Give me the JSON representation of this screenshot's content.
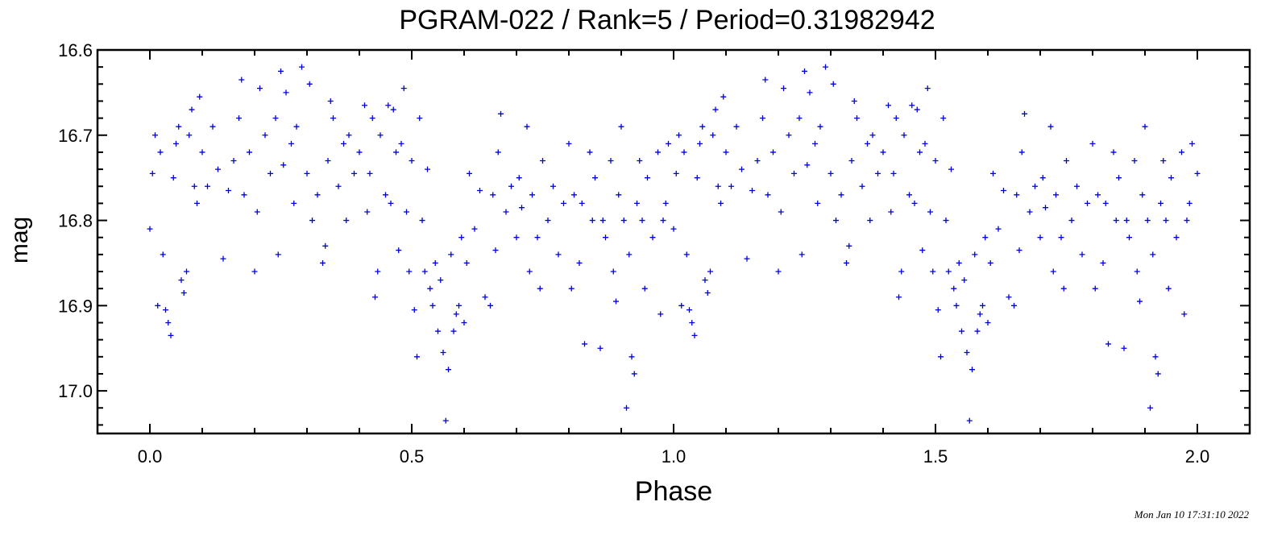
{
  "chart_data": {
    "type": "scatter",
    "title": "PGRAM-022 / Rank=5 / Period=0.31982942",
    "xlabel": "Phase",
    "ylabel": "mag",
    "xlim": [
      -0.1,
      2.1
    ],
    "ylim": [
      17.05,
      16.6
    ],
    "y_inverted": true,
    "xticks": [
      0.0,
      0.5,
      1.0,
      1.5,
      2.0
    ],
    "xtick_labels": [
      "0.0",
      "0.5",
      "1.0",
      "1.5",
      "2.0"
    ],
    "yticks": [
      16.6,
      16.7,
      16.8,
      16.9,
      17.0
    ],
    "ytick_labels": [
      "16.6",
      "16.7",
      "16.8",
      "16.9",
      "17.0"
    ],
    "marker": "+",
    "marker_color": "#0000dd",
    "grid": false,
    "timestamp": "Mon Jan 10 17:31:10 2022",
    "series": [
      {
        "points": [
          [
            0.0,
            16.81
          ],
          [
            0.005,
            16.745
          ],
          [
            0.01,
            16.7
          ],
          [
            0.015,
            16.9
          ],
          [
            0.02,
            16.72
          ],
          [
            0.025,
            16.84
          ],
          [
            0.03,
            16.905
          ],
          [
            0.035,
            16.92
          ],
          [
            0.04,
            16.935
          ],
          [
            0.045,
            16.75
          ],
          [
            0.05,
            16.71
          ],
          [
            0.055,
            16.69
          ],
          [
            0.06,
            16.87
          ],
          [
            0.065,
            16.885
          ],
          [
            0.07,
            16.86
          ],
          [
            0.075,
            16.7
          ],
          [
            0.08,
            16.67
          ],
          [
            0.085,
            16.76
          ],
          [
            0.09,
            16.78
          ],
          [
            0.095,
            16.655
          ],
          [
            0.1,
            16.72
          ],
          [
            0.11,
            16.76
          ],
          [
            0.12,
            16.69
          ],
          [
            0.13,
            16.74
          ],
          [
            0.14,
            16.845
          ],
          [
            0.15,
            16.765
          ],
          [
            0.16,
            16.73
          ],
          [
            0.17,
            16.68
          ],
          [
            0.175,
            16.635
          ],
          [
            0.18,
            16.77
          ],
          [
            0.19,
            16.72
          ],
          [
            0.2,
            16.86
          ],
          [
            0.205,
            16.79
          ],
          [
            0.21,
            16.645
          ],
          [
            0.22,
            16.7
          ],
          [
            0.23,
            16.745
          ],
          [
            0.24,
            16.68
          ],
          [
            0.245,
            16.84
          ],
          [
            0.25,
            16.625
          ],
          [
            0.255,
            16.735
          ],
          [
            0.26,
            16.65
          ],
          [
            0.27,
            16.71
          ],
          [
            0.275,
            16.78
          ],
          [
            0.28,
            16.69
          ],
          [
            0.29,
            16.62
          ],
          [
            0.3,
            16.745
          ],
          [
            0.305,
            16.64
          ],
          [
            0.31,
            16.8
          ],
          [
            0.32,
            16.77
          ],
          [
            0.33,
            16.85
          ],
          [
            0.335,
            16.83
          ],
          [
            0.34,
            16.73
          ],
          [
            0.345,
            16.66
          ],
          [
            0.35,
            16.68
          ],
          [
            0.36,
            16.76
          ],
          [
            0.37,
            16.71
          ],
          [
            0.375,
            16.8
          ],
          [
            0.38,
            16.7
          ],
          [
            0.39,
            16.745
          ],
          [
            0.4,
            16.72
          ],
          [
            0.41,
            16.665
          ],
          [
            0.415,
            16.79
          ],
          [
            0.42,
            16.745
          ],
          [
            0.425,
            16.68
          ],
          [
            0.43,
            16.89
          ],
          [
            0.435,
            16.86
          ],
          [
            0.44,
            16.7
          ],
          [
            0.45,
            16.77
          ],
          [
            0.455,
            16.665
          ],
          [
            0.46,
            16.78
          ],
          [
            0.465,
            16.67
          ],
          [
            0.47,
            16.72
          ],
          [
            0.475,
            16.835
          ],
          [
            0.48,
            16.71
          ],
          [
            0.485,
            16.645
          ],
          [
            0.49,
            16.79
          ],
          [
            0.495,
            16.86
          ],
          [
            0.5,
            16.73
          ],
          [
            0.505,
            16.905
          ],
          [
            0.51,
            16.96
          ],
          [
            0.515,
            16.68
          ],
          [
            0.52,
            16.8
          ],
          [
            0.525,
            16.86
          ],
          [
            0.53,
            16.74
          ],
          [
            0.535,
            16.88
          ],
          [
            0.54,
            16.9
          ],
          [
            0.545,
            16.85
          ],
          [
            0.55,
            16.93
          ],
          [
            0.555,
            16.87
          ],
          [
            0.56,
            16.955
          ],
          [
            0.565,
            17.035
          ],
          [
            0.57,
            16.975
          ],
          [
            0.575,
            16.84
          ],
          [
            0.58,
            16.93
          ],
          [
            0.585,
            16.91
          ],
          [
            0.59,
            16.9
          ],
          [
            0.595,
            16.82
          ],
          [
            0.6,
            16.92
          ],
          [
            0.605,
            16.85
          ],
          [
            0.61,
            16.745
          ],
          [
            0.62,
            16.81
          ],
          [
            0.63,
            16.765
          ],
          [
            0.64,
            16.89
          ],
          [
            0.65,
            16.9
          ],
          [
            0.655,
            16.77
          ],
          [
            0.66,
            16.835
          ],
          [
            0.665,
            16.72
          ],
          [
            0.67,
            16.675
          ],
          [
            0.68,
            16.79
          ],
          [
            0.69,
            16.76
          ],
          [
            0.7,
            16.82
          ],
          [
            0.705,
            16.75
          ],
          [
            0.71,
            16.785
          ],
          [
            0.72,
            16.69
          ],
          [
            0.725,
            16.86
          ],
          [
            0.73,
            16.77
          ],
          [
            0.74,
            16.82
          ],
          [
            0.745,
            16.88
          ],
          [
            0.75,
            16.73
          ],
          [
            0.76,
            16.8
          ],
          [
            0.77,
            16.76
          ],
          [
            0.78,
            16.84
          ],
          [
            0.79,
            16.78
          ],
          [
            0.8,
            16.71
          ],
          [
            0.805,
            16.88
          ],
          [
            0.81,
            16.77
          ],
          [
            0.82,
            16.85
          ],
          [
            0.825,
            16.78
          ],
          [
            0.83,
            16.945
          ],
          [
            0.84,
            16.72
          ],
          [
            0.845,
            16.8
          ],
          [
            0.85,
            16.75
          ],
          [
            0.86,
            16.95
          ],
          [
            0.865,
            16.8
          ],
          [
            0.87,
            16.82
          ],
          [
            0.88,
            16.73
          ],
          [
            0.885,
            16.86
          ],
          [
            0.89,
            16.895
          ],
          [
            0.895,
            16.77
          ],
          [
            0.9,
            16.69
          ],
          [
            0.905,
            16.8
          ],
          [
            0.91,
            17.02
          ],
          [
            0.915,
            16.84
          ],
          [
            0.92,
            16.96
          ],
          [
            0.925,
            16.98
          ],
          [
            0.93,
            16.78
          ],
          [
            0.935,
            16.73
          ],
          [
            0.94,
            16.8
          ],
          [
            0.945,
            16.88
          ],
          [
            0.95,
            16.75
          ],
          [
            0.96,
            16.82
          ],
          [
            0.97,
            16.72
          ],
          [
            0.975,
            16.91
          ],
          [
            0.98,
            16.8
          ],
          [
            0.985,
            16.78
          ],
          [
            0.99,
            16.71
          ],
          [
            1.0,
            16.81
          ],
          [
            1.005,
            16.745
          ],
          [
            1.01,
            16.7
          ],
          [
            1.015,
            16.9
          ],
          [
            1.02,
            16.72
          ],
          [
            1.025,
            16.84
          ],
          [
            1.03,
            16.905
          ],
          [
            1.035,
            16.92
          ],
          [
            1.04,
            16.935
          ],
          [
            1.045,
            16.75
          ],
          [
            1.05,
            16.71
          ],
          [
            1.055,
            16.69
          ],
          [
            1.06,
            16.87
          ],
          [
            1.065,
            16.885
          ],
          [
            1.07,
            16.86
          ],
          [
            1.075,
            16.7
          ],
          [
            1.08,
            16.67
          ],
          [
            1.085,
            16.76
          ],
          [
            1.09,
            16.78
          ],
          [
            1.095,
            16.655
          ],
          [
            1.1,
            16.72
          ],
          [
            1.11,
            16.76
          ],
          [
            1.12,
            16.69
          ],
          [
            1.13,
            16.74
          ],
          [
            1.14,
            16.845
          ],
          [
            1.15,
            16.765
          ],
          [
            1.16,
            16.73
          ],
          [
            1.17,
            16.68
          ],
          [
            1.175,
            16.635
          ],
          [
            1.18,
            16.77
          ],
          [
            1.19,
            16.72
          ],
          [
            1.2,
            16.86
          ],
          [
            1.205,
            16.79
          ],
          [
            1.21,
            16.645
          ],
          [
            1.22,
            16.7
          ],
          [
            1.23,
            16.745
          ],
          [
            1.24,
            16.68
          ],
          [
            1.245,
            16.84
          ],
          [
            1.25,
            16.625
          ],
          [
            1.255,
            16.735
          ],
          [
            1.26,
            16.65
          ],
          [
            1.27,
            16.71
          ],
          [
            1.275,
            16.78
          ],
          [
            1.28,
            16.69
          ],
          [
            1.29,
            16.62
          ],
          [
            1.3,
            16.745
          ],
          [
            1.305,
            16.64
          ],
          [
            1.31,
            16.8
          ],
          [
            1.32,
            16.77
          ],
          [
            1.33,
            16.85
          ],
          [
            1.335,
            16.83
          ],
          [
            1.34,
            16.73
          ],
          [
            1.345,
            16.66
          ],
          [
            1.35,
            16.68
          ],
          [
            1.36,
            16.76
          ],
          [
            1.37,
            16.71
          ],
          [
            1.375,
            16.8
          ],
          [
            1.38,
            16.7
          ],
          [
            1.39,
            16.745
          ],
          [
            1.4,
            16.72
          ],
          [
            1.41,
            16.665
          ],
          [
            1.415,
            16.79
          ],
          [
            1.42,
            16.745
          ],
          [
            1.425,
            16.68
          ],
          [
            1.43,
            16.89
          ],
          [
            1.435,
            16.86
          ],
          [
            1.44,
            16.7
          ],
          [
            1.45,
            16.77
          ],
          [
            1.455,
            16.665
          ],
          [
            1.46,
            16.78
          ],
          [
            1.465,
            16.67
          ],
          [
            1.47,
            16.72
          ],
          [
            1.475,
            16.835
          ],
          [
            1.48,
            16.71
          ],
          [
            1.485,
            16.645
          ],
          [
            1.49,
            16.79
          ],
          [
            1.495,
            16.86
          ],
          [
            1.5,
            16.73
          ],
          [
            1.505,
            16.905
          ],
          [
            1.51,
            16.96
          ],
          [
            1.515,
            16.68
          ],
          [
            1.52,
            16.8
          ],
          [
            1.525,
            16.86
          ],
          [
            1.53,
            16.74
          ],
          [
            1.535,
            16.88
          ],
          [
            1.54,
            16.9
          ],
          [
            1.545,
            16.85
          ],
          [
            1.55,
            16.93
          ],
          [
            1.555,
            16.87
          ],
          [
            1.56,
            16.955
          ],
          [
            1.565,
            17.035
          ],
          [
            1.57,
            16.975
          ],
          [
            1.575,
            16.84
          ],
          [
            1.58,
            16.93
          ],
          [
            1.585,
            16.91
          ],
          [
            1.59,
            16.9
          ],
          [
            1.595,
            16.82
          ],
          [
            1.6,
            16.92
          ],
          [
            1.605,
            16.85
          ],
          [
            1.61,
            16.745
          ],
          [
            1.62,
            16.81
          ],
          [
            1.63,
            16.765
          ],
          [
            1.64,
            16.89
          ],
          [
            1.65,
            16.9
          ],
          [
            1.655,
            16.77
          ],
          [
            1.66,
            16.835
          ],
          [
            1.665,
            16.72
          ],
          [
            1.67,
            16.675
          ],
          [
            1.68,
            16.79
          ],
          [
            1.69,
            16.76
          ],
          [
            1.7,
            16.82
          ],
          [
            1.705,
            16.75
          ],
          [
            1.71,
            16.785
          ],
          [
            1.72,
            16.69
          ],
          [
            1.725,
            16.86
          ],
          [
            1.73,
            16.77
          ],
          [
            1.74,
            16.82
          ],
          [
            1.745,
            16.88
          ],
          [
            1.75,
            16.73
          ],
          [
            1.76,
            16.8
          ],
          [
            1.77,
            16.76
          ],
          [
            1.78,
            16.84
          ],
          [
            1.79,
            16.78
          ],
          [
            1.8,
            16.71
          ],
          [
            1.805,
            16.88
          ],
          [
            1.81,
            16.77
          ],
          [
            1.82,
            16.85
          ],
          [
            1.825,
            16.78
          ],
          [
            1.83,
            16.945
          ],
          [
            1.84,
            16.72
          ],
          [
            1.845,
            16.8
          ],
          [
            1.85,
            16.75
          ],
          [
            1.86,
            16.95
          ],
          [
            1.865,
            16.8
          ],
          [
            1.87,
            16.82
          ],
          [
            1.88,
            16.73
          ],
          [
            1.885,
            16.86
          ],
          [
            1.89,
            16.895
          ],
          [
            1.895,
            16.77
          ],
          [
            1.9,
            16.69
          ],
          [
            1.905,
            16.8
          ],
          [
            1.91,
            17.02
          ],
          [
            1.915,
            16.84
          ],
          [
            1.92,
            16.96
          ],
          [
            1.925,
            16.98
          ],
          [
            1.93,
            16.78
          ],
          [
            1.935,
            16.73
          ],
          [
            1.94,
            16.8
          ],
          [
            1.945,
            16.88
          ],
          [
            1.95,
            16.75
          ],
          [
            1.96,
            16.82
          ],
          [
            1.97,
            16.72
          ],
          [
            1.975,
            16.91
          ],
          [
            1.98,
            16.8
          ],
          [
            1.985,
            16.78
          ],
          [
            1.99,
            16.71
          ],
          [
            2.0,
            16.745
          ]
        ]
      }
    ]
  }
}
